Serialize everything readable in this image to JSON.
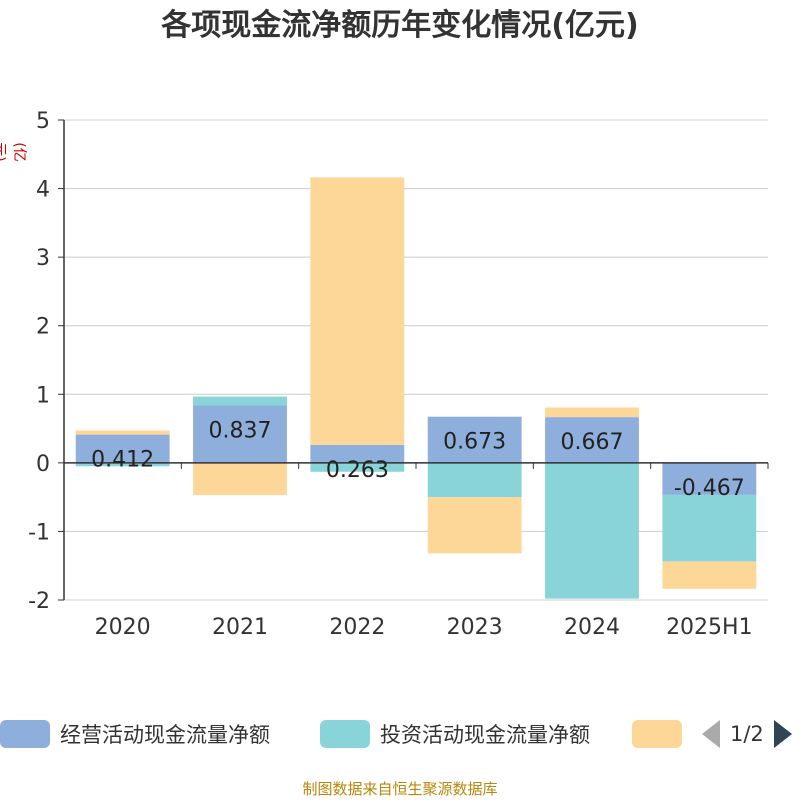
{
  "title": "各项现金流净额历年变化情况(亿元)",
  "unit_label": "(亿元)",
  "source": "制图数据来自恒生聚源数据库",
  "legend": {
    "items": [
      {
        "label": "经营活动现金流量净额",
        "color": "#8eaedb"
      },
      {
        "label": "投资活动现金流量净额",
        "color": "#88d4d8"
      },
      {
        "label": "",
        "color": "#fdd797"
      }
    ],
    "page": "1/2"
  },
  "chart_data": {
    "type": "bar",
    "stacked": true,
    "categories": [
      "2020",
      "2021",
      "2022",
      "2023",
      "2024",
      "2025H1"
    ],
    "series": [
      {
        "name": "经营活动现金流量净额",
        "color": "#8eaedb",
        "values": [
          0.412,
          0.837,
          0.263,
          0.673,
          0.667,
          -0.467
        ],
        "labels": [
          "0.412",
          "0.837",
          "0.263",
          "0.673",
          "0.667",
          "-0.467"
        ]
      },
      {
        "name": "投资活动现金流量净额",
        "color": "#88d4d8",
        "values": [
          -0.05,
          0.13,
          -0.13,
          -0.5,
          -1.98,
          -0.97
        ]
      },
      {
        "name": "",
        "color": "#fdd797",
        "values": [
          0.06,
          -0.47,
          3.9,
          -0.82,
          0.14,
          -0.4
        ]
      }
    ],
    "ylim": [
      -2,
      5
    ],
    "yticks": [
      5,
      4,
      3,
      2,
      1,
      0,
      -1,
      -2
    ],
    "grid": true,
    "legend_position": "bottom"
  }
}
